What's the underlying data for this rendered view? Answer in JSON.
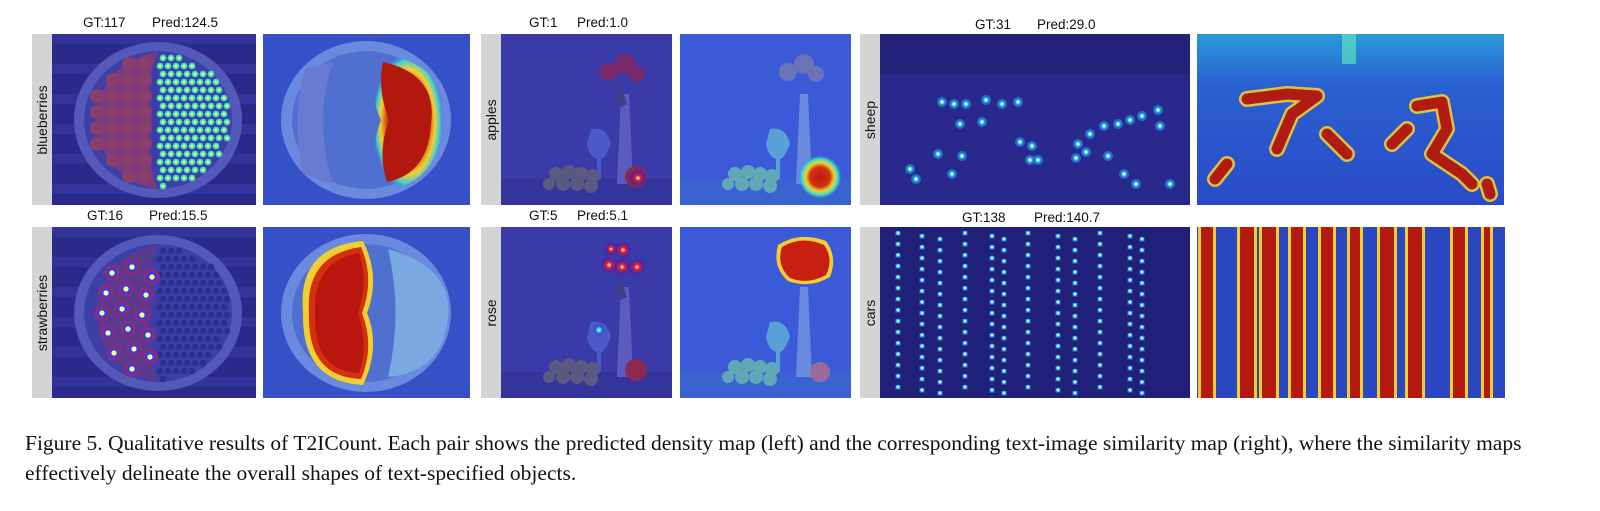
{
  "figure": {
    "rows": [
      {
        "groups": [
          {
            "category": "blueberries",
            "gt": "GT:117",
            "pred": "Pred:124.5"
          },
          {
            "category": "apples",
            "gt": "GT:1",
            "pred": "Pred:1.0"
          },
          {
            "category": "sheep",
            "gt": "GT:31",
            "pred": "Pred:29.0"
          }
        ]
      },
      {
        "groups": [
          {
            "category": "strawberries",
            "gt": "GT:16",
            "pred": "Pred:15.5"
          },
          {
            "category": "rose",
            "gt": "GT:5",
            "pred": "Pred:5.1"
          },
          {
            "category": "cars",
            "gt": "GT:138",
            "pred": "Pred:140.7"
          }
        ]
      }
    ],
    "caption": {
      "label": "Figure 5.",
      "text": "Qualitative results of T2ICount. Each pair shows the predicted density map (left) and the corresponding text-image similarity map (right), where the similarity maps effectively delineate the overall shapes of text-specified objects."
    }
  }
}
